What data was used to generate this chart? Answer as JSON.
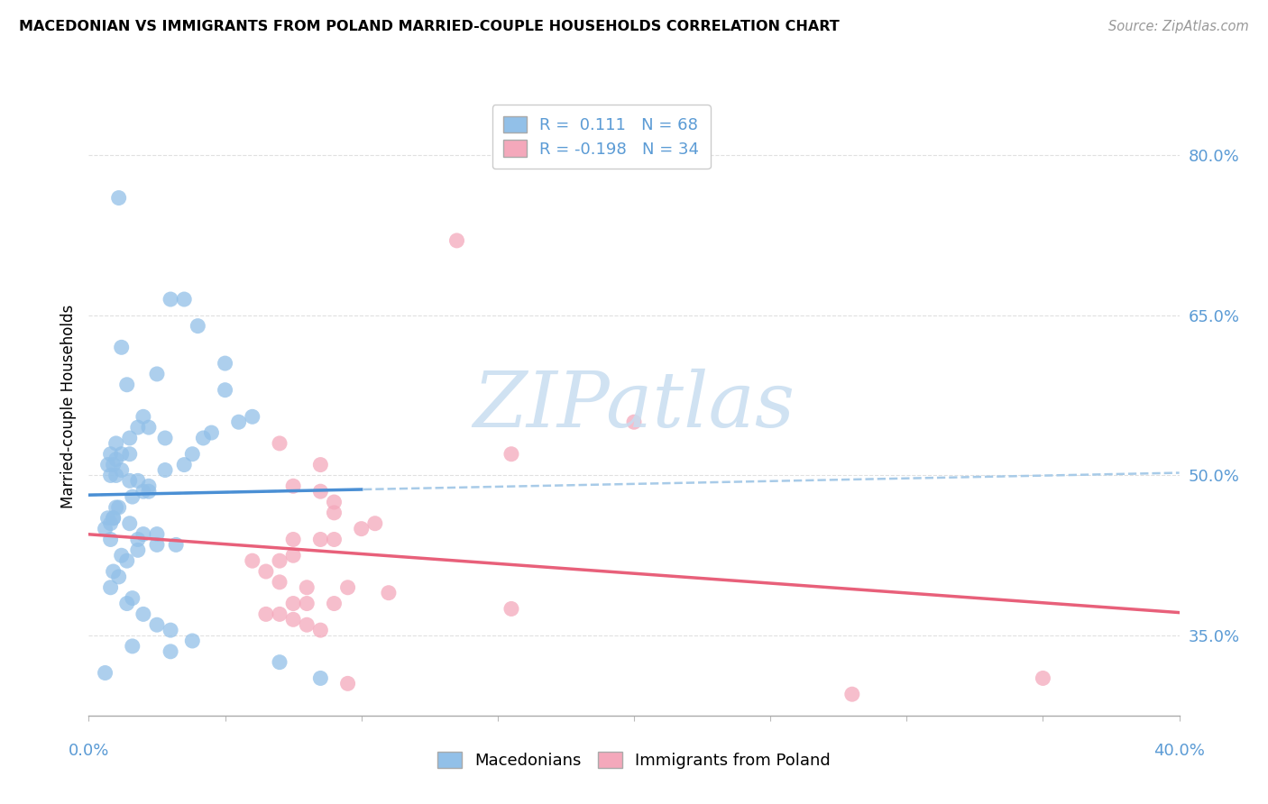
{
  "title": "MACEDONIAN VS IMMIGRANTS FROM POLAND MARRIED-COUPLE HOUSEHOLDS CORRELATION CHART",
  "source": "Source: ZipAtlas.com",
  "ylabel": "Married-couple Households",
  "xlim": [
    0.0,
    0.4
  ],
  "ylim": [
    0.275,
    0.855
  ],
  "ytick_vals": [
    0.35,
    0.5,
    0.65,
    0.8
  ],
  "ytick_labels": [
    "35.0%",
    "50.0%",
    "65.0%",
    "80.0%"
  ],
  "blue_scatter_color": "#92C0E8",
  "pink_scatter_color": "#F4A8BB",
  "blue_line_solid_color": "#4A8FD4",
  "blue_line_dashed_color": "#A8CBE8",
  "pink_line_color": "#E8607A",
  "legend_R1_text": "R =  0.111",
  "legend_N1_text": "N = 68",
  "legend_R2_text": "R = -0.198",
  "legend_N2_text": "N = 34",
  "legend_label1": "Macedonians",
  "legend_label2": "Immigrants from Poland",
  "watermark_text": "ZIPatlas",
  "watermark_color": "#C8DDF0",
  "grid_color": "#E0E0E0",
  "axis_label_color": "#5B9BD5",
  "macedonian_x": [
    0.011,
    0.03,
    0.035,
    0.04,
    0.012,
    0.05,
    0.014,
    0.025,
    0.02,
    0.022,
    0.018,
    0.015,
    0.028,
    0.01,
    0.012,
    0.008,
    0.015,
    0.01,
    0.007,
    0.009,
    0.012,
    0.008,
    0.01,
    0.015,
    0.018,
    0.02,
    0.022,
    0.045,
    0.038,
    0.055,
    0.06,
    0.05,
    0.042,
    0.035,
    0.028,
    0.022,
    0.016,
    0.01,
    0.009,
    0.007,
    0.008,
    0.015,
    0.02,
    0.025,
    0.032,
    0.018,
    0.012,
    0.014,
    0.009,
    0.011,
    0.008,
    0.016,
    0.014,
    0.02,
    0.025,
    0.03,
    0.038,
    0.03,
    0.025,
    0.018,
    0.009,
    0.011,
    0.006,
    0.008,
    0.085,
    0.07,
    0.006,
    0.016
  ],
  "macedonian_y": [
    0.76,
    0.665,
    0.665,
    0.64,
    0.62,
    0.605,
    0.585,
    0.595,
    0.555,
    0.545,
    0.545,
    0.535,
    0.535,
    0.53,
    0.52,
    0.52,
    0.52,
    0.515,
    0.51,
    0.51,
    0.505,
    0.5,
    0.5,
    0.495,
    0.495,
    0.485,
    0.485,
    0.54,
    0.52,
    0.55,
    0.555,
    0.58,
    0.535,
    0.51,
    0.505,
    0.49,
    0.48,
    0.47,
    0.46,
    0.46,
    0.455,
    0.455,
    0.445,
    0.445,
    0.435,
    0.43,
    0.425,
    0.42,
    0.41,
    0.405,
    0.395,
    0.385,
    0.38,
    0.37,
    0.36,
    0.355,
    0.345,
    0.335,
    0.435,
    0.44,
    0.46,
    0.47,
    0.45,
    0.44,
    0.31,
    0.325,
    0.315,
    0.34
  ],
  "poland_x": [
    0.135,
    0.07,
    0.155,
    0.2,
    0.085,
    0.075,
    0.085,
    0.09,
    0.09,
    0.105,
    0.1,
    0.09,
    0.085,
    0.075,
    0.07,
    0.06,
    0.065,
    0.07,
    0.08,
    0.095,
    0.11,
    0.09,
    0.08,
    0.075,
    0.155,
    0.065,
    0.07,
    0.075,
    0.08,
    0.085,
    0.35,
    0.075,
    0.095,
    0.28
  ],
  "poland_y": [
    0.72,
    0.53,
    0.52,
    0.55,
    0.51,
    0.49,
    0.485,
    0.475,
    0.465,
    0.455,
    0.45,
    0.44,
    0.44,
    0.425,
    0.42,
    0.42,
    0.41,
    0.4,
    0.395,
    0.395,
    0.39,
    0.38,
    0.38,
    0.38,
    0.375,
    0.37,
    0.37,
    0.365,
    0.36,
    0.355,
    0.31,
    0.44,
    0.305,
    0.295
  ]
}
